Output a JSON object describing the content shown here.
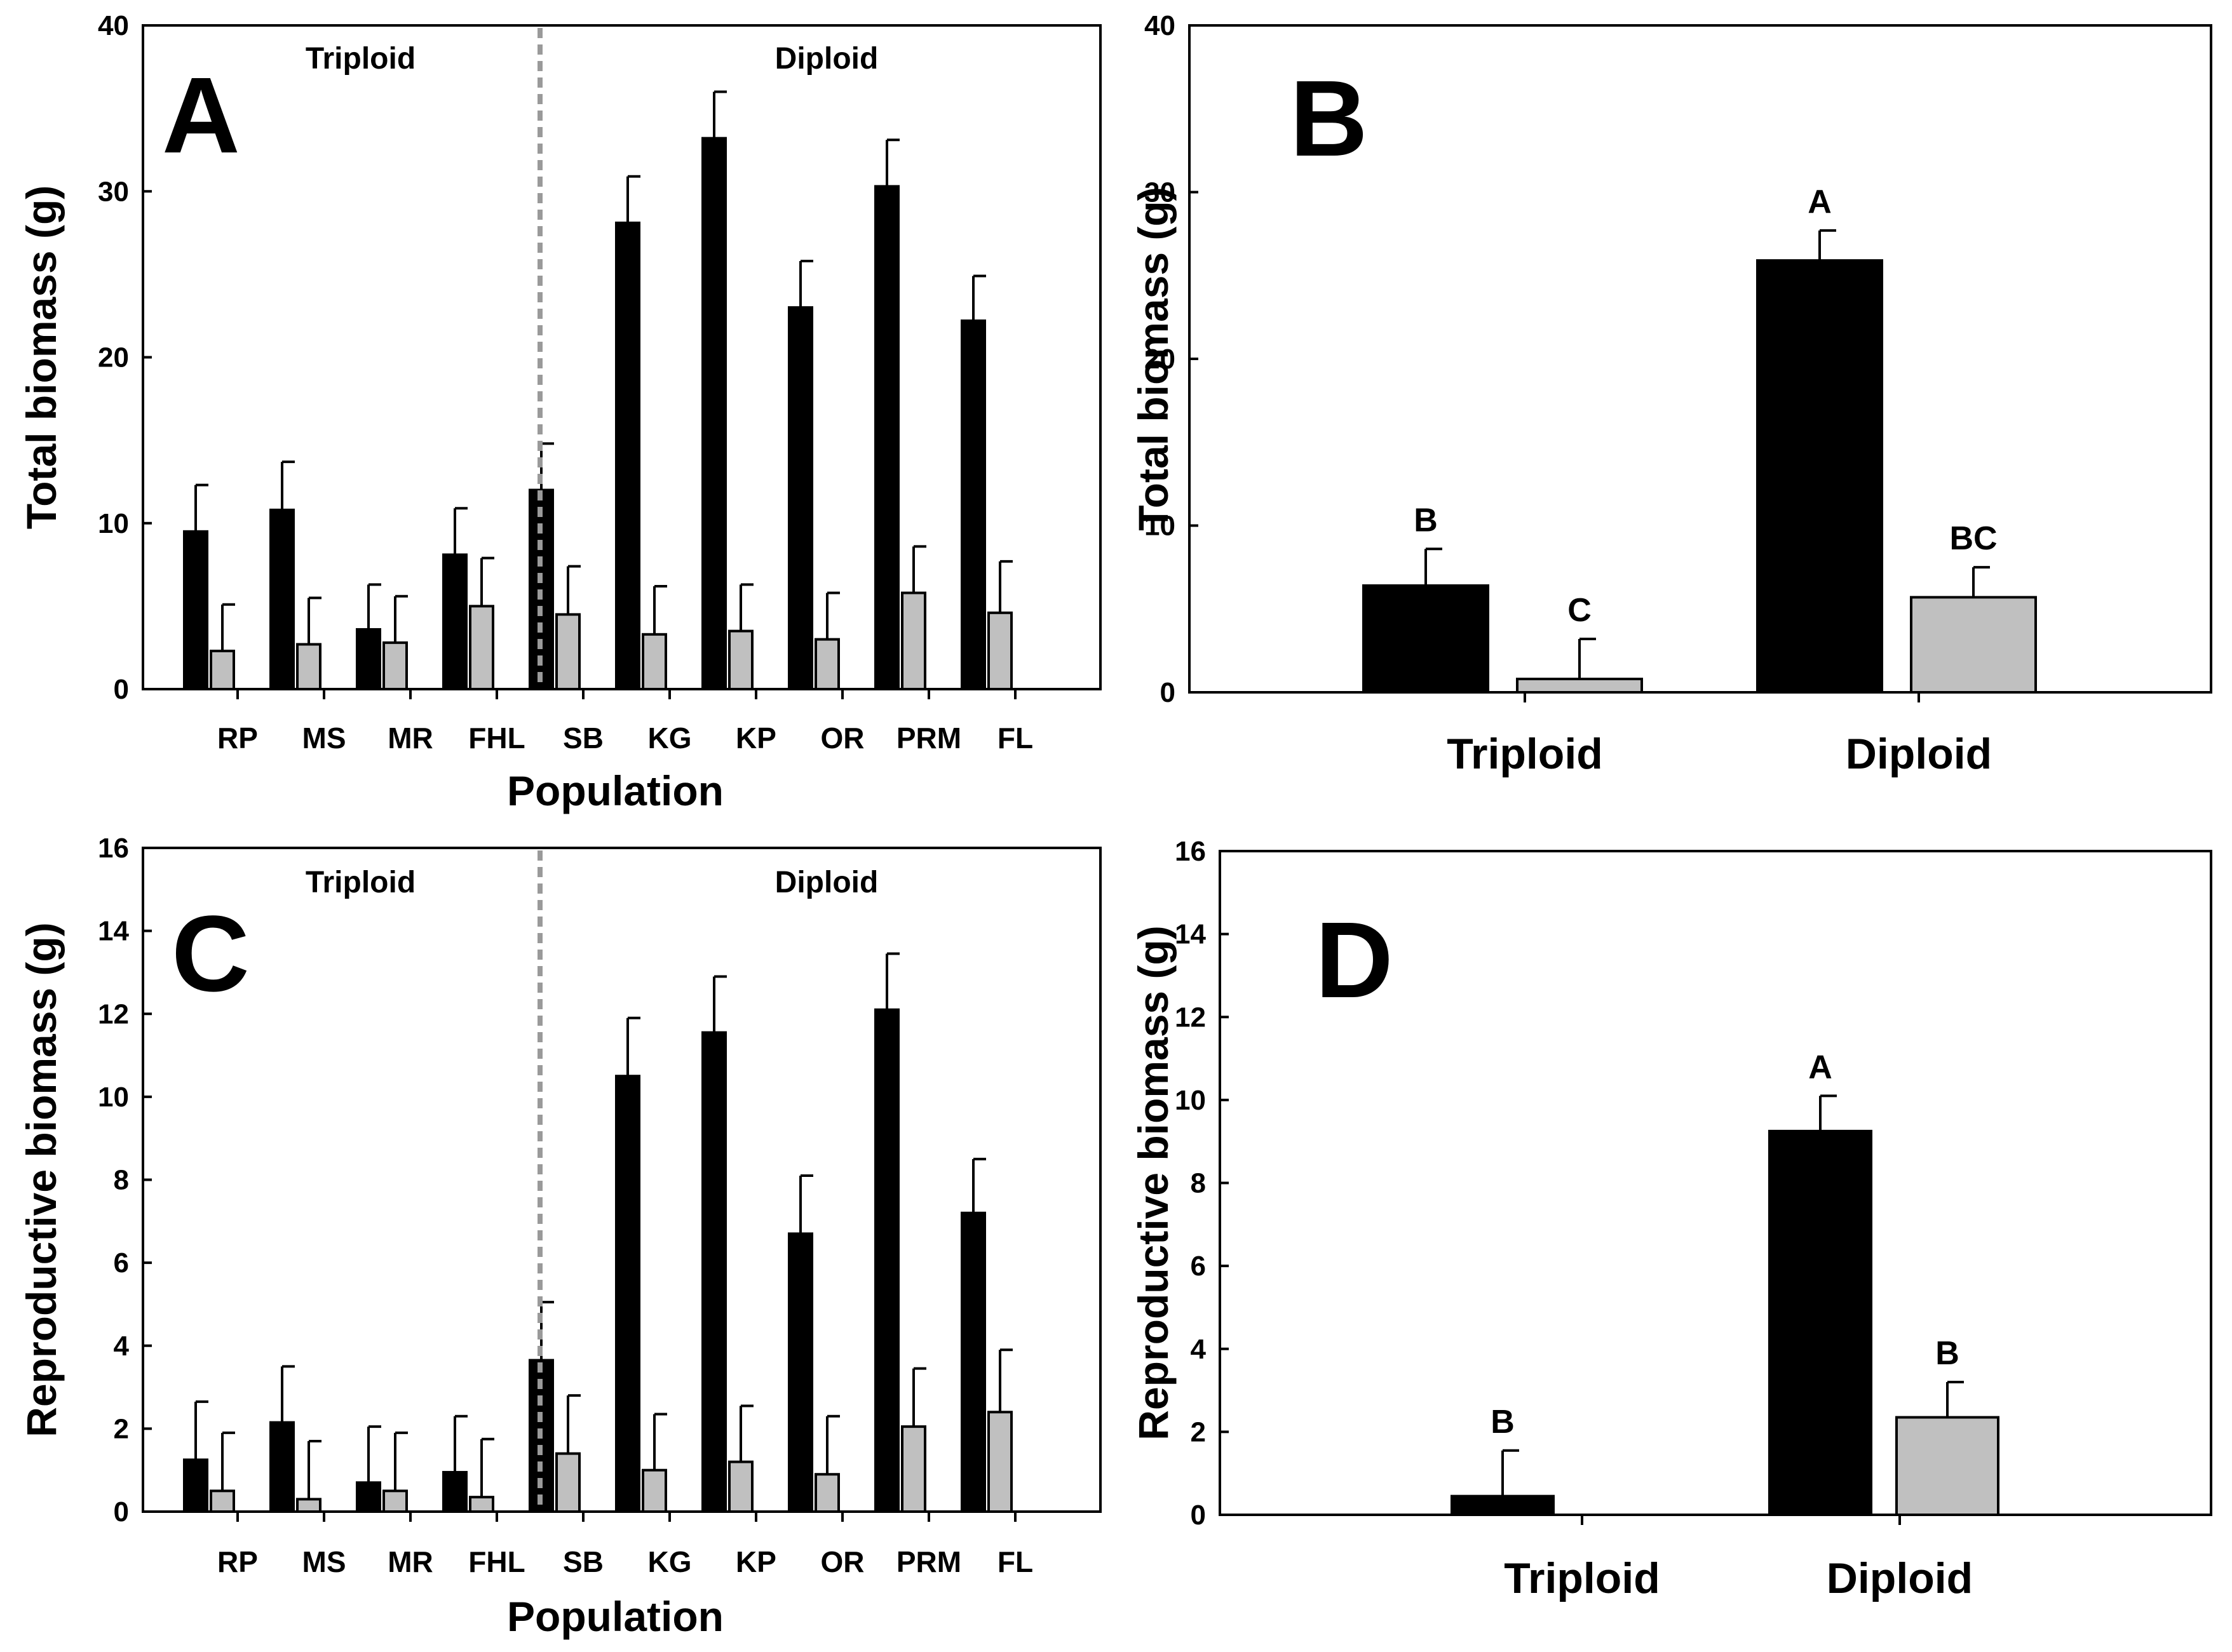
{
  "colors": {
    "black_series": "#000000",
    "gray_series": "#c0c0c0",
    "divider": "#9a9a9a"
  },
  "chart_data": [
    {
      "panel": "A",
      "type": "bar",
      "ylabel": "Total biomass (g)",
      "xlabel": "Population",
      "ylim": [
        0,
        40
      ],
      "yticks": [
        0,
        10,
        20,
        30,
        40
      ],
      "categories": [
        "RP",
        "MS",
        "MR",
        "FHL",
        "SB",
        "KG",
        "KP",
        "OR",
        "PRM",
        "FL"
      ],
      "group_labels": [
        "Triploid",
        "Diploid"
      ],
      "series": [
        {
          "values": [
            9.5,
            10.8,
            3.6,
            8.1,
            12.0,
            28.1,
            33.2,
            23.0,
            30.3,
            22.2
          ],
          "errors": [
            2.8,
            2.9,
            2.7,
            2.8,
            2.8,
            2.8,
            2.8,
            2.8,
            2.8,
            2.7
          ]
        },
        {
          "values": [
            2.3,
            2.7,
            2.8,
            5.0,
            4.5,
            3.3,
            3.5,
            3.0,
            5.8,
            4.6
          ],
          "errors": [
            2.8,
            2.8,
            2.8,
            2.9,
            2.9,
            2.9,
            2.8,
            2.8,
            2.8,
            3.1
          ]
        }
      ]
    },
    {
      "panel": "B",
      "type": "bar",
      "ylabel": "Total biomass (g)",
      "xlabel": "",
      "ylim": [
        0,
        40
      ],
      "yticks": [
        0,
        10,
        20,
        30,
        40
      ],
      "categories": [
        "Triploid",
        "Diploid"
      ],
      "series": [
        {
          "values": [
            6.4,
            25.9
          ],
          "errors": [
            2.2,
            1.8
          ],
          "letters": [
            "B",
            "A"
          ]
        },
        {
          "values": [
            0.8,
            5.7
          ],
          "errors": [
            2.4,
            1.8
          ],
          "letters": [
            "C",
            "BC"
          ]
        }
      ]
    },
    {
      "panel": "C",
      "type": "bar",
      "ylabel": "Reproductive biomass (g)",
      "xlabel": "Population",
      "ylim": [
        0,
        16
      ],
      "yticks": [
        0,
        2,
        4,
        6,
        8,
        10,
        12,
        14,
        16
      ],
      "categories": [
        "RP",
        "MS",
        "MR",
        "FHL",
        "SB",
        "KG",
        "KP",
        "OR",
        "PRM",
        "FL"
      ],
      "group_labels": [
        "Triploid",
        "Diploid"
      ],
      "series": [
        {
          "values": [
            1.25,
            2.15,
            0.7,
            0.95,
            3.65,
            10.5,
            11.55,
            6.7,
            12.1,
            7.2
          ],
          "errors": [
            1.4,
            1.35,
            1.35,
            1.35,
            1.4,
            1.4,
            1.35,
            1.4,
            1.35,
            1.3
          ]
        },
        {
          "values": [
            0.5,
            0.3,
            0.5,
            0.35,
            1.4,
            1.0,
            1.2,
            0.9,
            2.05,
            2.4
          ],
          "errors": [
            1.4,
            1.4,
            1.4,
            1.4,
            1.4,
            1.35,
            1.35,
            1.4,
            1.4,
            1.5
          ]
        }
      ]
    },
    {
      "panel": "D",
      "type": "bar",
      "ylabel": "Reproductive biomass (g)",
      "xlabel": "",
      "ylim": [
        0,
        16
      ],
      "yticks": [
        0,
        2,
        4,
        6,
        8,
        10,
        12,
        14,
        16
      ],
      "categories": [
        "Triploid",
        "Diploid"
      ],
      "series": [
        {
          "values": [
            0.45,
            9.25
          ],
          "errors": [
            1.1,
            0.85
          ],
          "letters": [
            "B",
            "A"
          ]
        },
        {
          "values": [
            0.0,
            2.35
          ],
          "errors": [
            0.0,
            0.85
          ],
          "letters": [
            "",
            "B"
          ]
        }
      ]
    }
  ]
}
